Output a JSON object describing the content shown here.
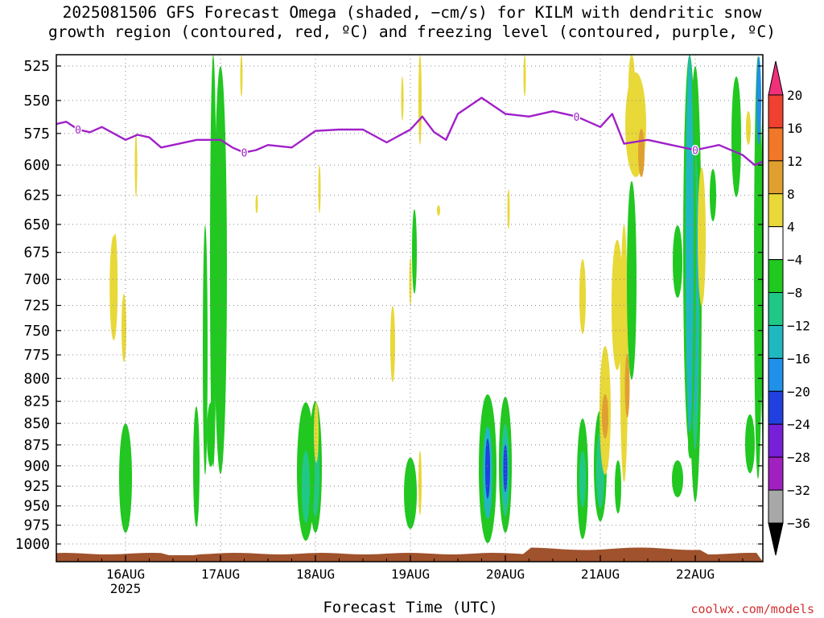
{
  "title_line1": "2025081506 GFS Forecast Omega (shaded, −cm/s) for KILM with dendritic snow",
  "title_line2": "growth region (contoured, red, ºC) and freezing level (contoured, purple, ºC)",
  "xlabel": "Forecast Time (UTC)",
  "credit": "coolwx.com/models",
  "colors": {
    "freezing_level": "#a020c8",
    "terrain": "#a0522d",
    "grid": "#888888"
  },
  "chart_data": {
    "type": "heatmap",
    "y_axis": {
      "label": "",
      "scale": "pressure (hPa)",
      "inverted": true,
      "ticks": [
        525,
        550,
        575,
        600,
        625,
        650,
        675,
        700,
        725,
        750,
        775,
        800,
        825,
        850,
        875,
        900,
        925,
        950,
        975,
        1000
      ]
    },
    "x_axis": {
      "range": [
        "2025-08-15 06Z",
        "2025-08-22 18Z"
      ],
      "ticks": [
        "16AUG",
        "17AUG",
        "18AUG",
        "19AUG",
        "20AUG",
        "21AUG",
        "22AUG"
      ],
      "tick_year": "2025"
    },
    "grid": "dotted",
    "colorbar": {
      "levels": [
        20,
        16,
        12,
        8,
        4,
        -4,
        -8,
        -12,
        -16,
        -20,
        -24,
        -28,
        -32,
        -36
      ],
      "labels": [
        "20",
        "16",
        "12",
        "8",
        "4",
        "−4",
        "−8",
        "−12",
        "−16",
        "−20",
        "−24",
        "−28",
        "−32",
        "−36"
      ],
      "colors": [
        "#f0307a",
        "#f04030",
        "#f07828",
        "#e0a030",
        "#e8d838",
        "#ffffff",
        "#20c820",
        "#20c888",
        "#20b8c0",
        "#2090e8",
        "#2040e0",
        "#7820d8",
        "#a020c0",
        "#a8a8a8"
      ]
    },
    "freezing_level": {
      "label": "0",
      "points": [
        [
          "08-15 06",
          568
        ],
        [
          "08-15 09",
          566
        ],
        [
          "08-15 12",
          572
        ],
        [
          "08-15 15",
          574
        ],
        [
          "08-15 18",
          570
        ],
        [
          "08-16 00",
          580
        ],
        [
          "08-16 03",
          576
        ],
        [
          "08-16 06",
          578
        ],
        [
          "08-16 09",
          586
        ],
        [
          "08-16 12",
          584
        ],
        [
          "08-16 18",
          580
        ],
        [
          "08-17 00",
          580
        ],
        [
          "08-17 03",
          586
        ],
        [
          "08-17 06",
          590
        ],
        [
          "08-17 09",
          588
        ],
        [
          "08-17 12",
          584
        ],
        [
          "08-17 18",
          586
        ],
        [
          "08-18 00",
          573
        ],
        [
          "08-18 06",
          572
        ],
        [
          "08-18 12",
          572
        ],
        [
          "08-18 18",
          582
        ],
        [
          "08-19 00",
          572
        ],
        [
          "08-19 03",
          562
        ],
        [
          "08-19 06",
          574
        ],
        [
          "08-19 09",
          580
        ],
        [
          "08-19 12",
          560
        ],
        [
          "08-19 18",
          548
        ],
        [
          "08-20 00",
          560
        ],
        [
          "08-20 06",
          562
        ],
        [
          "08-20 12",
          558
        ],
        [
          "08-20 18",
          562
        ],
        [
          "08-21 00",
          570
        ],
        [
          "08-21 03",
          560
        ],
        [
          "08-21 06",
          583
        ],
        [
          "08-21 12",
          580
        ],
        [
          "08-21 18",
          584
        ],
        [
          "08-22 00",
          588
        ],
        [
          "08-22 06",
          584
        ],
        [
          "08-22 12",
          592
        ],
        [
          "08-22 15",
          600
        ],
        [
          "08-22 18",
          596
        ]
      ]
    },
    "dgz_contour": {
      "approx_pressure_hPa": [
        560,
        610
      ],
      "time": "08-21 12Z"
    },
    "omega_features": [
      {
        "time": "08-16 00",
        "p_top": 850,
        "p_bottom": 985,
        "value": -8
      },
      {
        "time": "08-15 21",
        "p_top": 660,
        "p_bottom": 760,
        "value": 4
      },
      {
        "time": "08-17 00",
        "p_top": 525,
        "p_bottom": 910,
        "value": -8
      },
      {
        "time": "08-18 00",
        "p_top": 825,
        "p_bottom": 985,
        "value": -12
      },
      {
        "time": "08-19 00",
        "p_top": 890,
        "p_bottom": 980,
        "value": -8
      },
      {
        "time": "08-20 00",
        "p_top": 820,
        "p_bottom": 985,
        "value": -20
      },
      {
        "time": "08-21 00",
        "p_top": 835,
        "p_bottom": 970,
        "value": -12
      },
      {
        "time": "08-21 06",
        "p_top": 650,
        "p_bottom": 920,
        "value": 8
      },
      {
        "time": "08-22 00",
        "p_top": 525,
        "p_bottom": 945,
        "value": -16
      },
      {
        "time": "08-22 18",
        "p_top": 525,
        "p_bottom": 920,
        "value": -16
      }
    ]
  }
}
